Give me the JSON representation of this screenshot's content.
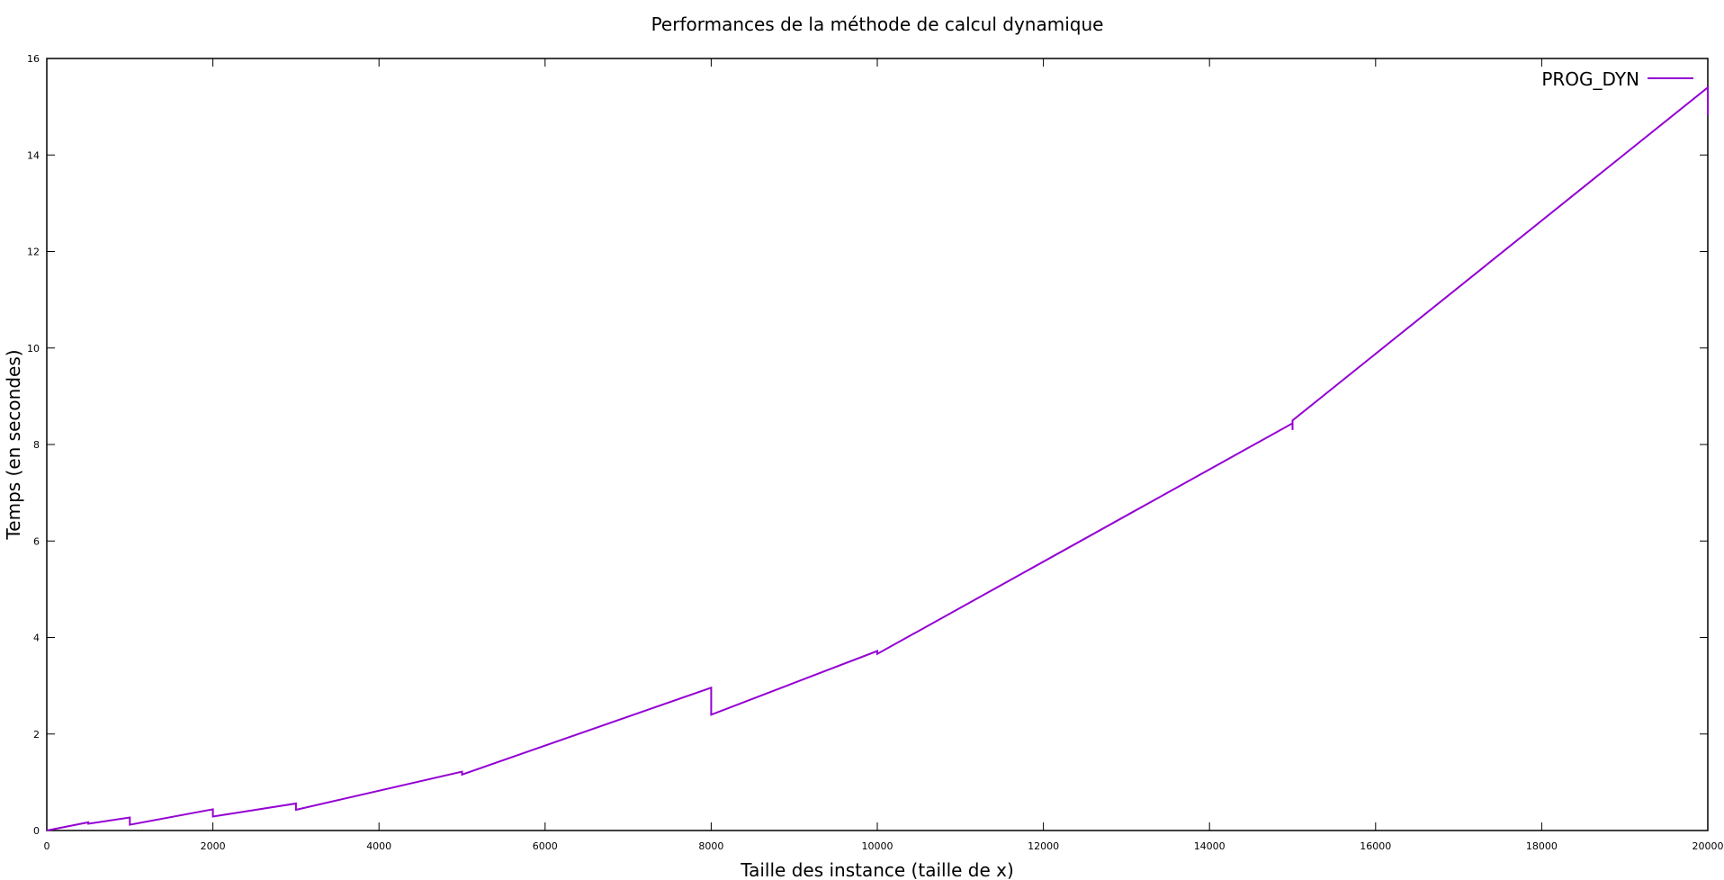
{
  "chart_data": {
    "type": "line",
    "title": "Performances de la méthode de calcul dynamique",
    "xlabel": "Taille des instance (taille de x)",
    "ylabel": "Temps (en secondes)",
    "xlim": [
      0,
      20000
    ],
    "ylim": [
      0,
      16
    ],
    "xticks": [
      0,
      2000,
      4000,
      6000,
      8000,
      10000,
      12000,
      14000,
      16000,
      18000,
      20000
    ],
    "yticks": [
      0,
      2,
      4,
      6,
      8,
      10,
      12,
      14,
      16
    ],
    "grid": false,
    "legend_position": "top-right",
    "series": [
      {
        "name": "PROG_DYN",
        "color": "#9400d3",
        "x": [
          0,
          500,
          500,
          1000,
          1000,
          2000,
          2000,
          3000,
          3000,
          5000,
          5000,
          8000,
          8000,
          10000,
          10000,
          15000,
          15000,
          15000,
          20000,
          20000
        ],
        "y": [
          0,
          0.17,
          0.14,
          0.27,
          0.12,
          0.44,
          0.29,
          0.56,
          0.43,
          1.22,
          1.16,
          2.96,
          2.4,
          3.72,
          3.66,
          8.44,
          8.3,
          8.5,
          15.4,
          14.83
        ]
      }
    ]
  }
}
